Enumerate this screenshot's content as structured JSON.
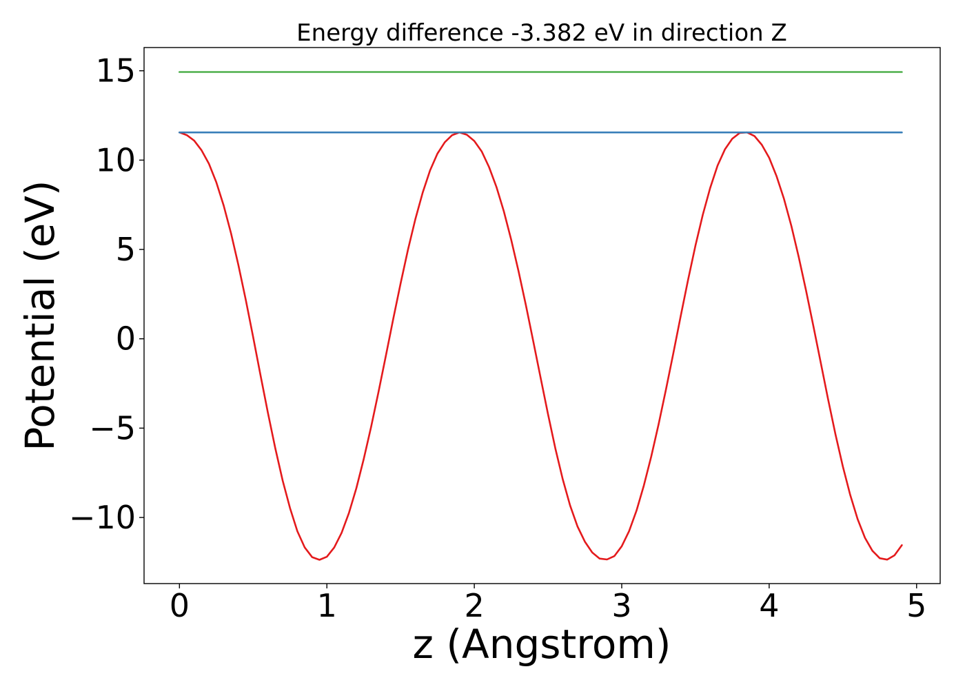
{
  "chart_data": {
    "type": "line",
    "title": "Energy difference -3.382 eV in direction Z",
    "xlabel": "z (Angstrom)",
    "ylabel": "Potential (eV)",
    "xlim": [
      -0.24,
      5.16
    ],
    "ylim": [
      -13.7,
      16.3
    ],
    "x_ticks": [
      0,
      1,
      2,
      3,
      4,
      5
    ],
    "x_tick_labels": [
      "0",
      "1",
      "2",
      "3",
      "4",
      "5"
    ],
    "y_ticks": [
      -10,
      -5,
      0,
      5,
      10,
      15
    ],
    "y_tick_labels": [
      "−10",
      "−5",
      "0",
      "5",
      "10",
      "15"
    ],
    "grid": false,
    "series": [
      {
        "color": "#e41a1c",
        "x": [
          0.0,
          0.05,
          0.1,
          0.15,
          0.2,
          0.25,
          0.3,
          0.35,
          0.4,
          0.45,
          0.5,
          0.55,
          0.6,
          0.65,
          0.7,
          0.75,
          0.8,
          0.85,
          0.9,
          0.95,
          1.0,
          1.05,
          1.1,
          1.15,
          1.2,
          1.25,
          1.3,
          1.35,
          1.4,
          1.45,
          1.5,
          1.55,
          1.6,
          1.65,
          1.7,
          1.75,
          1.8,
          1.85,
          1.9,
          1.95,
          2.0,
          2.05,
          2.1,
          2.15,
          2.2,
          2.25,
          2.3,
          2.35,
          2.4,
          2.45,
          2.5,
          2.55,
          2.6,
          2.65,
          2.7,
          2.75,
          2.8,
          2.85,
          2.9,
          2.95,
          3.0,
          3.05,
          3.1,
          3.15,
          3.2,
          3.25,
          3.3,
          3.35,
          3.4,
          3.45,
          3.5,
          3.55,
          3.6,
          3.65,
          3.7,
          3.75,
          3.8,
          3.85,
          3.9,
          3.95,
          4.0,
          4.05,
          4.1,
          4.15,
          4.2,
          4.25,
          4.3,
          4.35,
          4.4,
          4.45,
          4.5,
          4.55,
          4.6,
          4.65,
          4.7,
          4.75,
          4.8,
          4.85,
          4.9
        ],
        "y": [
          11.55,
          11.4,
          11.09,
          10.55,
          9.8,
          8.76,
          7.46,
          5.9,
          4.12,
          2.17,
          0.09,
          -2.05,
          -4.15,
          -6.13,
          -7.94,
          -9.48,
          -10.77,
          -11.68,
          -12.22,
          -12.37,
          -12.2,
          -11.68,
          -10.86,
          -9.74,
          -8.36,
          -6.73,
          -4.93,
          -2.98,
          -0.95,
          1.11,
          3.1,
          4.99,
          6.7,
          8.19,
          9.42,
          10.36,
          11.0,
          11.4,
          11.55,
          11.42,
          11.07,
          10.49,
          9.61,
          8.5,
          7.14,
          5.55,
          3.78,
          1.87,
          -0.15,
          -2.2,
          -4.23,
          -6.14,
          -7.86,
          -9.33,
          -10.5,
          -11.35,
          -11.96,
          -12.3,
          -12.35,
          -12.16,
          -11.61,
          -10.76,
          -9.62,
          -8.21,
          -6.59,
          -4.78,
          -2.83,
          -0.8,
          1.28,
          3.31,
          5.21,
          6.94,
          8.44,
          9.69,
          10.6,
          11.2,
          11.52,
          11.55,
          11.35,
          10.86,
          10.13,
          9.1,
          7.84,
          6.33,
          4.59,
          2.7,
          0.7,
          -1.35,
          -3.39,
          -5.35,
          -7.15,
          -8.74,
          -10.09,
          -11.14,
          -11.86,
          -12.28,
          -12.36,
          -12.12,
          -11.55
        ]
      },
      {
        "color": "#377eb8",
        "x": [
          0.0,
          4.9
        ],
        "y": [
          11.55,
          11.55
        ]
      },
      {
        "color": "#4daf4a",
        "x": [
          0.0,
          4.9
        ],
        "y": [
          14.93,
          14.93
        ]
      }
    ]
  }
}
